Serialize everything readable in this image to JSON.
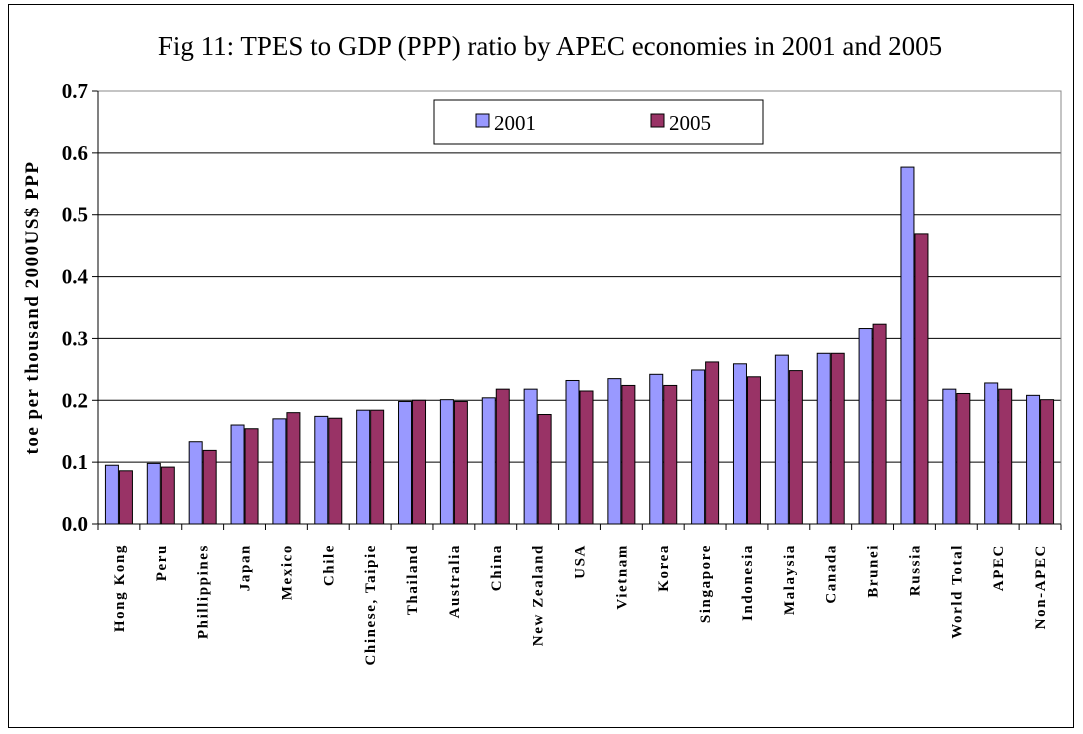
{
  "chart_data": {
    "type": "bar",
    "title": "Fig 11: TPES to GDP (PPP) ratio by APEC economies in 2001 and 2005",
    "ylabel": "toe per thousand 2000US$ PPP",
    "xlabel": "",
    "ylim": [
      0,
      0.7
    ],
    "yticks": [
      "0.0",
      "0.1",
      "0.2",
      "0.3",
      "0.4",
      "0.5",
      "0.6",
      "0.7"
    ],
    "grid": true,
    "legend_position": "top-right",
    "categories": [
      "Hong Kong",
      "Peru",
      "Phillippines",
      "Japan",
      "Mexico",
      "Chile",
      "Chinese, Taipie",
      "Thailand",
      "Australia",
      "China",
      "New Zealand",
      "USA",
      "Vietnam",
      "Korea",
      "Singapore",
      "Indonesia",
      "Malaysia",
      "Canada",
      "Brunei",
      "Russia",
      "World Total",
      "APEC",
      "Non-APEC"
    ],
    "series": [
      {
        "name": "2001",
        "color": "#9999ff",
        "values": [
          0.095,
          0.098,
          0.133,
          0.16,
          0.17,
          0.174,
          0.184,
          0.198,
          0.201,
          0.204,
          0.218,
          0.232,
          0.235,
          0.242,
          0.249,
          0.259,
          0.273,
          0.276,
          0.316,
          0.577,
          0.218,
          0.228,
          0.208
        ]
      },
      {
        "name": "2005",
        "color": "#993366",
        "values": [
          0.086,
          0.092,
          0.119,
          0.154,
          0.18,
          0.171,
          0.184,
          0.2,
          0.198,
          0.218,
          0.177,
          0.215,
          0.224,
          0.224,
          0.262,
          0.238,
          0.248,
          0.276,
          0.323,
          0.469,
          0.211,
          0.218,
          0.201
        ]
      }
    ]
  }
}
